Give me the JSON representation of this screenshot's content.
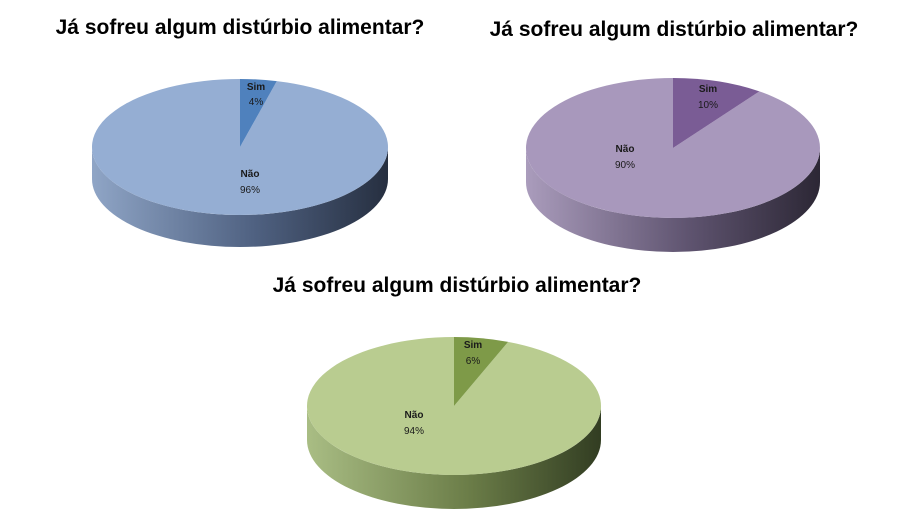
{
  "chart_data": [
    {
      "type": "pie",
      "title": "Já sofreu algum distúrbio alimentar?",
      "categories": [
        "Sim",
        "Não"
      ],
      "values": [
        4,
        96
      ],
      "labels": [
        "4%",
        "96%"
      ],
      "colors": {
        "Sim": "#4F81BD",
        "Não": "#95AED3"
      },
      "style": "3d"
    },
    {
      "type": "pie",
      "title": "Já sofreu algum distúrbio alimentar?",
      "categories": [
        "Sim",
        "Não"
      ],
      "values": [
        10,
        90
      ],
      "labels": [
        "10%",
        "90%"
      ],
      "colors": {
        "Sim": "#7A5C95",
        "Não": "#A898BC"
      },
      "style": "3d"
    },
    {
      "type": "pie",
      "title": "Já sofreu algum distúrbio alimentar?",
      "categories": [
        "Sim",
        "Não"
      ],
      "values": [
        6,
        94
      ],
      "labels": [
        "6%",
        "94%"
      ],
      "colors": {
        "Sim": "#7E9A48",
        "Não": "#B9CC90"
      },
      "style": "3d"
    }
  ]
}
